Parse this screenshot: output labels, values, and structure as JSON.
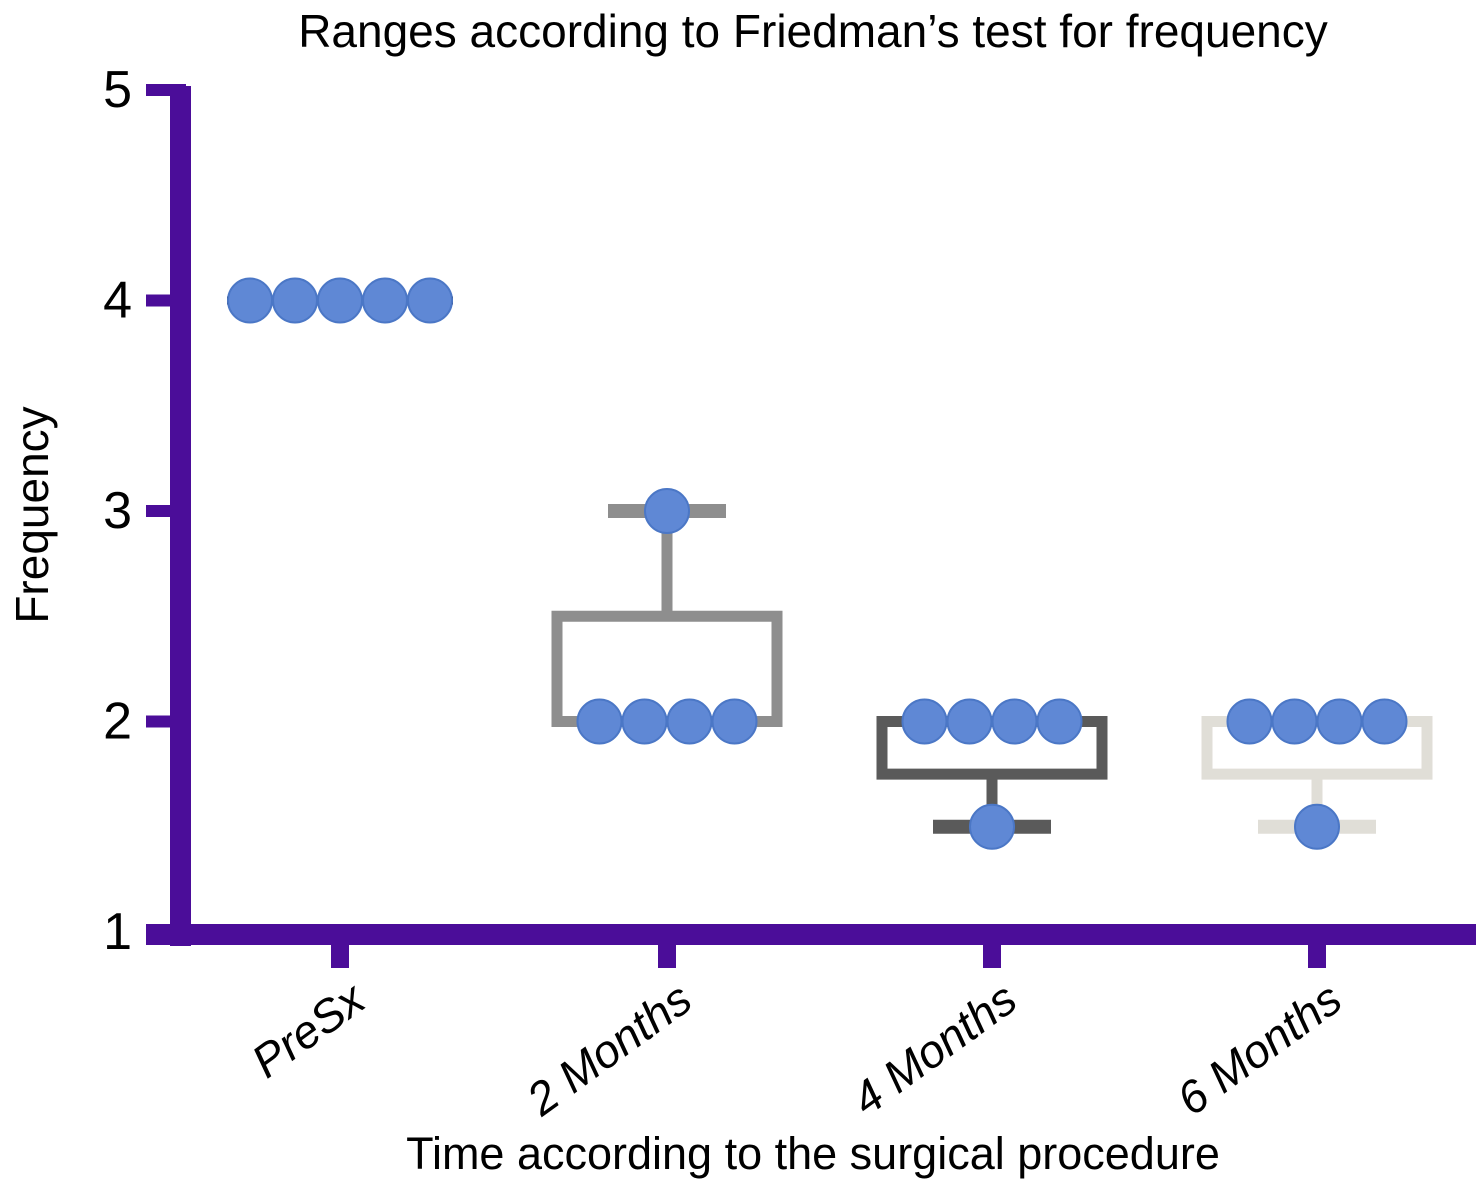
{
  "chart_data": {
    "type": "box-scatter",
    "title": "Ranges according to Friedman’s test for frequency",
    "xlabel": "Time according to the surgical procedure",
    "ylabel": "Frequency",
    "ylim": [
      1,
      5
    ],
    "yticks": [
      5,
      4,
      3,
      2,
      1
    ],
    "categories": [
      "PreSx",
      "2 Months",
      "4 Months",
      "6 Months"
    ],
    "groups": [
      {
        "label": "PreSx",
        "points": [
          4,
          4,
          4,
          4,
          4
        ],
        "median_line": 4,
        "line_color": "#25252e"
      },
      {
        "label": "2 Months",
        "points": [
          3,
          2,
          2,
          2,
          2
        ],
        "box": {
          "low": 2,
          "high": 2.5
        },
        "whisker": {
          "from": 2.5,
          "to": 3
        },
        "color": "#8e8e8e"
      },
      {
        "label": "4 Months",
        "points": [
          2,
          2,
          2,
          2,
          1.5
        ],
        "box": {
          "low": 1.75,
          "high": 2
        },
        "whisker": {
          "from": 1.75,
          "to": 1.5
        },
        "color": "#5a5a5a"
      },
      {
        "label": "6 Months",
        "points": [
          2,
          2,
          2,
          2,
          1.5
        ],
        "box": {
          "low": 1.75,
          "high": 2
        },
        "whisker": {
          "from": 1.75,
          "to": 1.5
        },
        "color": "#e0ded7"
      }
    ],
    "colors": {
      "axis": "#4b0d99",
      "point": "#5f88d5",
      "point_edge": "#4b77c6",
      "text": "#000000"
    },
    "grid": false,
    "legend": null
  }
}
